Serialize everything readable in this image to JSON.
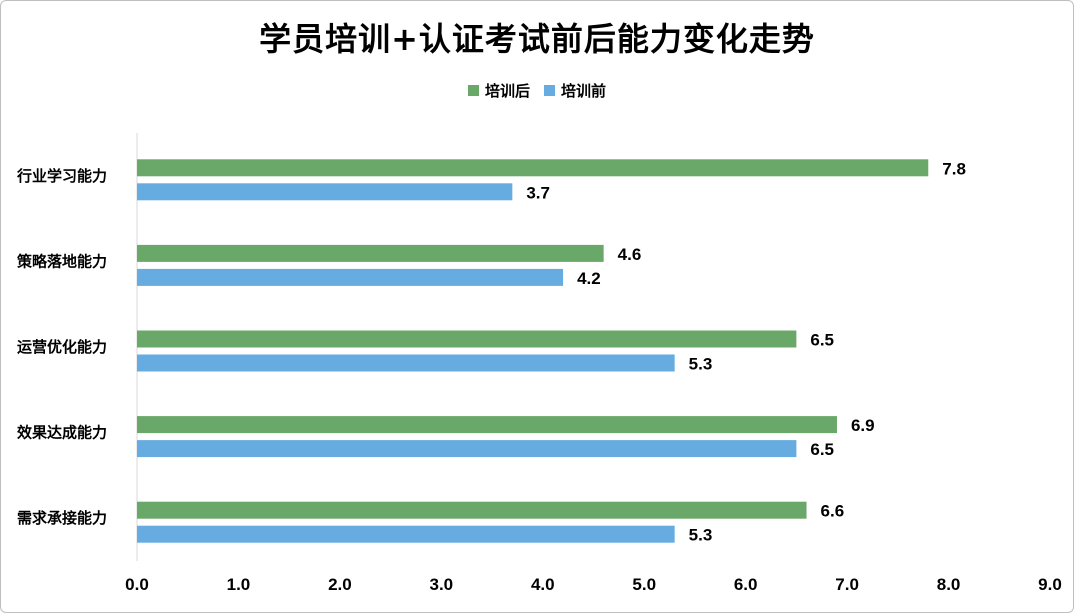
{
  "chart_data": {
    "type": "bar",
    "orientation": "horizontal",
    "title": "学员培训+认证考试前后能力变化走势",
    "categories": [
      "行业学习能力",
      "策略落地能力",
      "运营优化能力",
      "效果达成能力",
      "需求承接能力"
    ],
    "series": [
      {
        "name": "培训后",
        "color": "#6aa86a",
        "values": [
          7.8,
          4.6,
          6.5,
          6.9,
          6.6
        ]
      },
      {
        "name": "培训前",
        "color": "#66ace0",
        "values": [
          3.7,
          4.2,
          5.3,
          6.5,
          5.3
        ]
      }
    ],
    "xlim": [
      0,
      9
    ],
    "xticks": [
      "0.0",
      "1.0",
      "2.0",
      "3.0",
      "4.0",
      "5.0",
      "6.0",
      "7.0",
      "8.0",
      "9.0"
    ],
    "legend_position": "top",
    "grid": false,
    "data_labels": true
  }
}
